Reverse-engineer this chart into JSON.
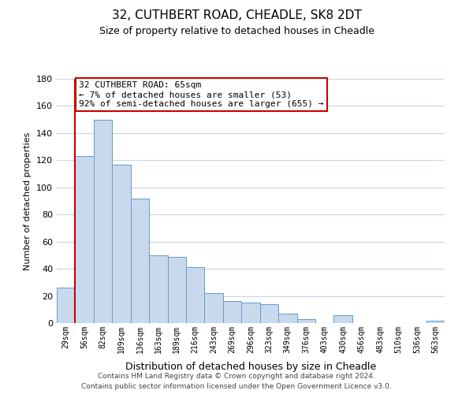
{
  "title": "32, CUTHBERT ROAD, CHEADLE, SK8 2DT",
  "subtitle": "Size of property relative to detached houses in Cheadle",
  "xlabel": "Distribution of detached houses by size in Cheadle",
  "ylabel": "Number of detached properties",
  "bar_color": "#c8d9ee",
  "bar_edge_color": "#6699cc",
  "background_color": "#ffffff",
  "grid_color": "#c8d4e8",
  "categories": [
    "29sqm",
    "56sqm",
    "82sqm",
    "109sqm",
    "136sqm",
    "163sqm",
    "189sqm",
    "216sqm",
    "243sqm",
    "269sqm",
    "296sqm",
    "323sqm",
    "349sqm",
    "376sqm",
    "403sqm",
    "430sqm",
    "456sqm",
    "483sqm",
    "510sqm",
    "536sqm",
    "563sqm"
  ],
  "values": [
    26,
    123,
    150,
    117,
    92,
    50,
    49,
    41,
    22,
    16,
    15,
    14,
    7,
    3,
    0,
    6,
    0,
    0,
    0,
    0,
    2
  ],
  "ylim": [
    0,
    180
  ],
  "yticks": [
    0,
    20,
    40,
    60,
    80,
    100,
    120,
    140,
    160,
    180
  ],
  "property_line_color": "#cc0000",
  "annotation_line1": "32 CUTHBERT ROAD: 65sqm",
  "annotation_line2": "← 7% of detached houses are smaller (53)",
  "annotation_line3": "92% of semi-detached houses are larger (655) →",
  "annotation_box_color": "#ffffff",
  "annotation_box_edge_color": "#cc0000",
  "footer_line1": "Contains HM Land Registry data © Crown copyright and database right 2024.",
  "footer_line2": "Contains public sector information licensed under the Open Government Licence v3.0."
}
